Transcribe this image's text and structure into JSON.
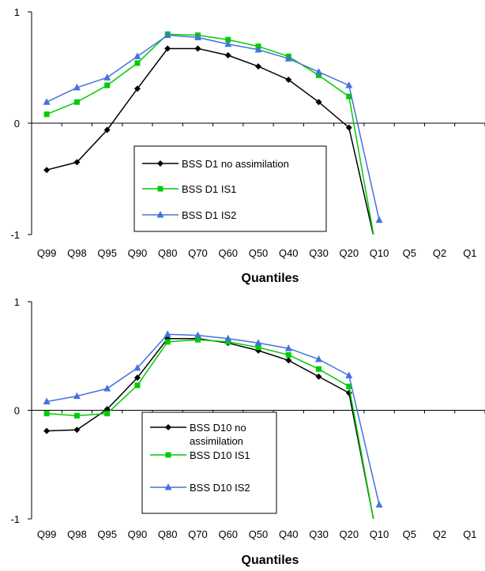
{
  "chart_data": [
    {
      "type": "line",
      "categories": [
        "Q99",
        "Q98",
        "Q95",
        "Q90",
        "Q80",
        "Q70",
        "Q60",
        "Q50",
        "Q40",
        "Q30",
        "Q20",
        "Q10",
        "Q5",
        "Q2",
        "Q1"
      ],
      "xlabel": "Quantiles",
      "ylabel": "",
      "ylim": [
        -1,
        1
      ],
      "yticks": [
        "1",
        "0",
        "-1"
      ],
      "grid": false,
      "legend_position": "bottom-center",
      "series": [
        {
          "name": "BSS D1 no assimilation",
          "color": "#000000",
          "marker": "diamond",
          "values": [
            -0.42,
            -0.35,
            -0.06,
            0.31,
            0.67,
            0.67,
            0.61,
            0.51,
            0.39,
            0.19,
            -0.04,
            -1.05,
            null,
            null,
            null
          ]
        },
        {
          "name": "BSS D1 IS1",
          "color": "#00cc00",
          "marker": "square",
          "values": [
            0.08,
            0.19,
            0.34,
            0.54,
            0.8,
            0.79,
            0.75,
            0.69,
            0.6,
            0.43,
            0.24,
            -1.05,
            null,
            null,
            null
          ]
        },
        {
          "name": "BSS D1 IS2",
          "color": "#4472dd",
          "marker": "triangle",
          "values": [
            0.19,
            0.32,
            0.41,
            0.6,
            0.79,
            0.77,
            0.71,
            0.66,
            0.58,
            0.46,
            0.34,
            -0.87,
            null,
            null,
            null
          ]
        }
      ]
    },
    {
      "type": "line",
      "categories": [
        "Q99",
        "Q98",
        "Q95",
        "Q90",
        "Q80",
        "Q70",
        "Q60",
        "Q50",
        "Q40",
        "Q30",
        "Q20",
        "Q10",
        "Q5",
        "Q2",
        "Q1"
      ],
      "xlabel": "Quantiles",
      "ylabel": "",
      "ylim": [
        -1,
        1
      ],
      "yticks": [
        "1",
        "0",
        "-1"
      ],
      "grid": false,
      "legend_position": "bottom-center",
      "series": [
        {
          "name": "BSS D10 no assimilation",
          "color": "#000000",
          "marker": "diamond",
          "values": [
            -0.19,
            -0.18,
            0.01,
            0.3,
            0.66,
            0.66,
            0.62,
            0.55,
            0.46,
            0.31,
            0.16,
            -1.05,
            null,
            null,
            null
          ]
        },
        {
          "name": "BSS D10 IS1",
          "color": "#00cc00",
          "marker": "square",
          "values": [
            -0.03,
            -0.05,
            -0.03,
            0.23,
            0.63,
            0.65,
            0.63,
            0.58,
            0.51,
            0.38,
            0.22,
            -1.05,
            null,
            null,
            null
          ]
        },
        {
          "name": "BSS D10 IS2",
          "color": "#4472dd",
          "marker": "triangle",
          "values": [
            0.08,
            0.13,
            0.2,
            0.39,
            0.7,
            0.69,
            0.66,
            0.62,
            0.57,
            0.47,
            0.32,
            -0.87,
            null,
            null,
            null
          ]
        }
      ]
    }
  ]
}
